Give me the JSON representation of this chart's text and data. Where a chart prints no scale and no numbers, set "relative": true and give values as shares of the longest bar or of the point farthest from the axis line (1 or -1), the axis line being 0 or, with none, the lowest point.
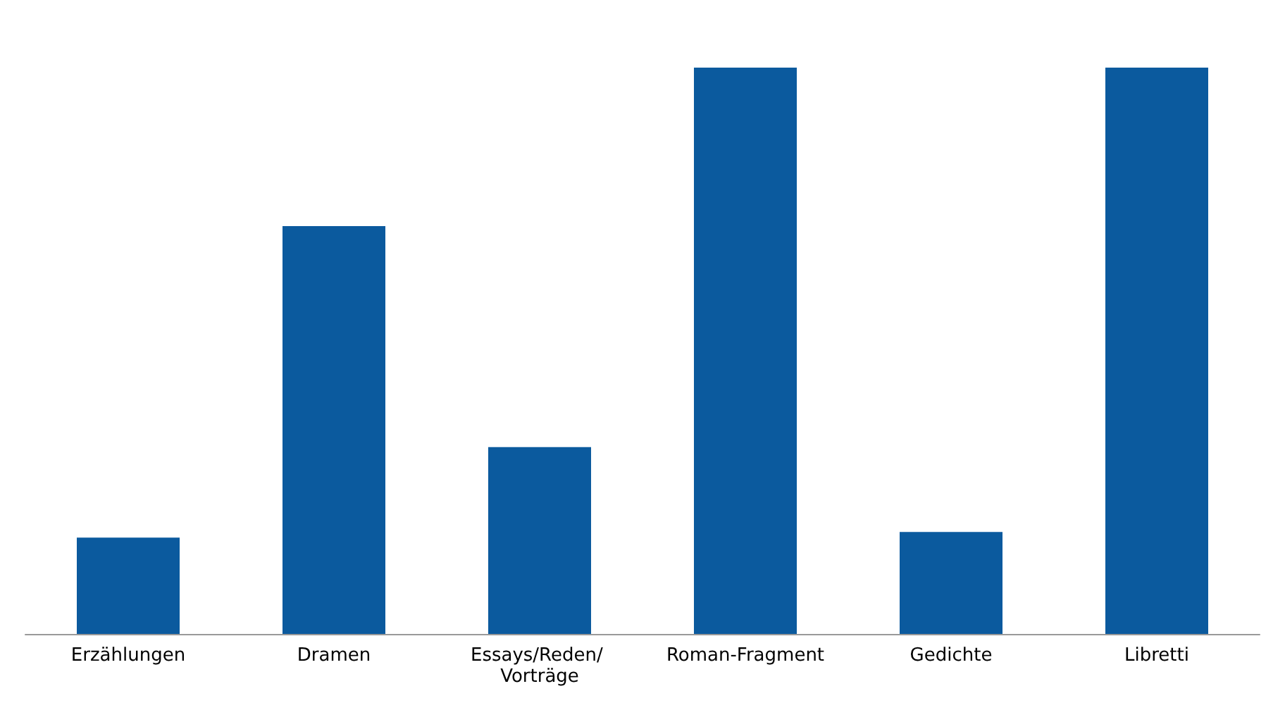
{
  "chart_data": {
    "type": "bar",
    "relative": true,
    "categories": [
      "Erzählungen",
      "Dramen",
      "Essays/Reden/ Vorträge",
      "Roman-Fragment",
      "Gedichte",
      "Libretti"
    ],
    "values": [
      0.17,
      0.72,
      0.33,
      1,
      0.18,
      1
    ],
    "color": "#0b5a9e"
  }
}
